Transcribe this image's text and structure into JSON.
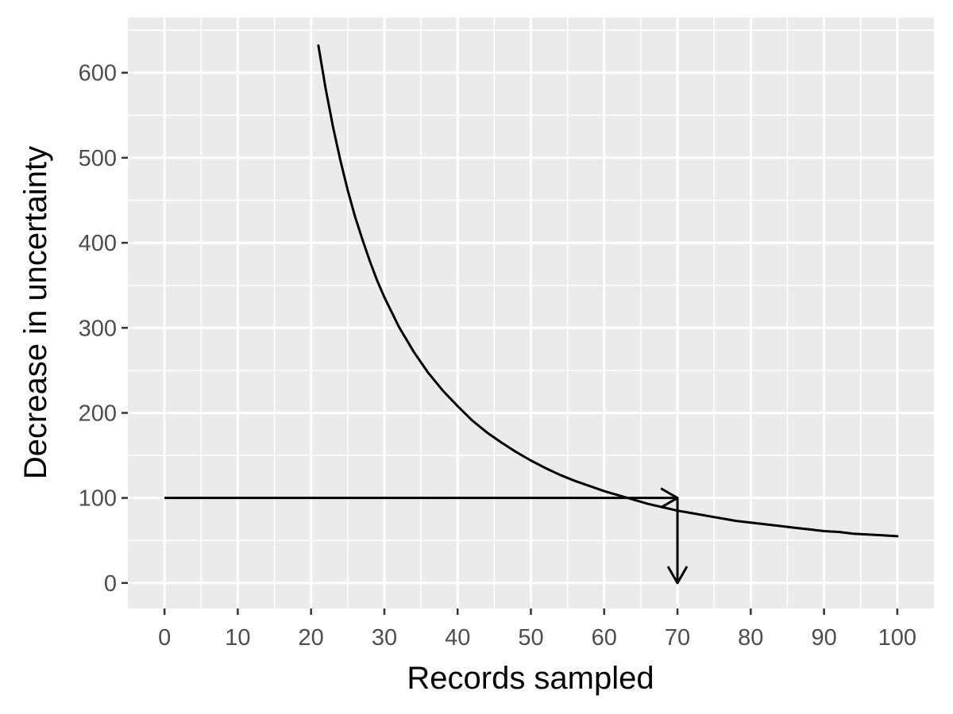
{
  "chart_data": {
    "type": "line",
    "title": "",
    "xlabel": "Records sampled",
    "ylabel": "Decrease in uncertainty",
    "xlim": [
      -5,
      105
    ],
    "ylim": [
      -30,
      665
    ],
    "x_ticks": [
      0,
      10,
      20,
      30,
      40,
      50,
      60,
      70,
      80,
      90,
      100
    ],
    "x_tick_labels": [
      "0",
      "10",
      "20",
      "30",
      "40",
      "50",
      "60",
      "70",
      "80",
      "90",
      "100"
    ],
    "y_ticks": [
      0,
      100,
      200,
      300,
      400,
      500,
      600
    ],
    "y_tick_labels": [
      "0",
      "100",
      "200",
      "300",
      "400",
      "500",
      "600"
    ],
    "grid": true,
    "legend": "none",
    "series": [
      {
        "x": [
          21,
          22,
          23,
          24,
          25,
          26,
          27,
          28,
          29,
          30,
          32,
          34,
          36,
          38,
          40,
          42,
          44,
          46,
          48,
          50,
          52,
          54,
          56,
          58,
          60,
          62,
          64,
          66,
          68,
          70,
          72,
          74,
          76,
          78,
          80,
          82,
          84,
          86,
          88,
          90,
          92,
          94,
          96,
          98,
          100
        ],
        "y": [
          632,
          581,
          536,
          497,
          462,
          431,
          404,
          379,
          356,
          336,
          301,
          272,
          247,
          226,
          208,
          191,
          177,
          165,
          154,
          144,
          135,
          127,
          120,
          114,
          108,
          103,
          98,
          93,
          89,
          85,
          82,
          79,
          76,
          73,
          71,
          69,
          67,
          65,
          63,
          61,
          60,
          58,
          57,
          56,
          55
        ]
      }
    ],
    "annotations": [
      {
        "type": "arrow",
        "from": [
          0,
          100
        ],
        "to": [
          70,
          100
        ]
      },
      {
        "type": "arrow",
        "from": [
          70,
          100
        ],
        "to": [
          70,
          0
        ]
      }
    ],
    "colors": {
      "panel": "#ebebeb",
      "grid": "#ffffff",
      "line": "#000000",
      "tick_text": "#4d4d4d",
      "tick_mark": "#333333"
    }
  }
}
